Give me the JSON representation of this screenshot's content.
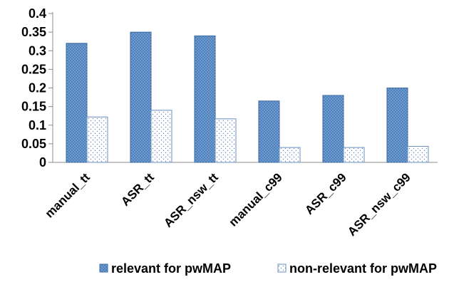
{
  "chart_data": {
    "type": "bar",
    "title": "",
    "xlabel": "",
    "ylabel": "",
    "categories": [
      "manual_tt",
      "ASR_tt",
      "ASR_nsw_tt",
      "manual_c99",
      "ASR_c99",
      "ASR_nsw_c99"
    ],
    "series": [
      {
        "name": "relevant for pwMAP",
        "values": [
          0.32,
          0.35,
          0.34,
          0.165,
          0.18,
          0.2
        ],
        "color": "#4f81bd",
        "pattern": "dotted-dark"
      },
      {
        "name": "non-relevant for pwMAP",
        "values": [
          0.122,
          0.14,
          0.117,
          0.04,
          0.04,
          0.043
        ],
        "color": "#ffffff",
        "pattern": "dotted-light"
      }
    ],
    "ylim": [
      0,
      0.4
    ],
    "yticks": [
      "0",
      "0.05",
      "0.1",
      "0.15",
      "0.2",
      "0.25",
      "0.3",
      "0.35",
      "0.4"
    ],
    "grid": false,
    "legend_position": "bottom"
  }
}
